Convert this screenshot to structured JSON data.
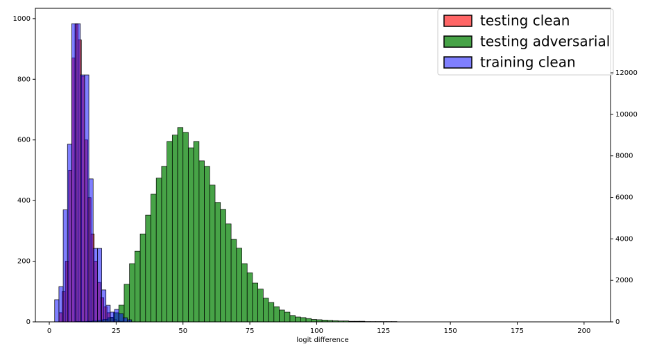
{
  "chart_data": {
    "type": "histogram",
    "xlabel": "logit difference",
    "xlim": [
      -5.2,
      209.9
    ],
    "xticks": [
      0,
      25,
      50,
      75,
      100,
      125,
      150,
      175,
      200
    ],
    "ylim": [
      0,
      1034
    ],
    "yticks": [
      0,
      200,
      400,
      600,
      800,
      1000
    ],
    "y2lim": [
      0,
      15110
    ],
    "y2ticks": [
      0,
      2000,
      4000,
      6000,
      8000,
      10000,
      12000
    ],
    "grid": false,
    "legend": "upper right",
    "series": [
      {
        "name": "testing clean",
        "color": "rgba(255,0,0,0.6)",
        "bins": [
          3.6,
          4.8,
          6.0,
          7.2,
          8.4,
          9.6,
          10.8,
          12.0,
          13.2,
          14.4,
          15.6,
          16.8,
          18.0,
          19.2,
          20.4,
          21.6,
          22.8,
          24.0,
          25.2,
          26.4,
          27.6
        ],
        "values": [
          30,
          100,
          200,
          500,
          870,
          982,
          930,
          810,
          600,
          410,
          290,
          200,
          130,
          80,
          50,
          30,
          15,
          8,
          4,
          2
        ]
      },
      {
        "name": "testing adversarial",
        "color": "rgba(0,128,0,0.72)",
        "bins": [
          10,
          12,
          14,
          16,
          18,
          20,
          22,
          24,
          26,
          28,
          30,
          32,
          34,
          36,
          38,
          40,
          42,
          44,
          46,
          48,
          50,
          52,
          54,
          56,
          58,
          60,
          62,
          64,
          66,
          68,
          70,
          72,
          74,
          76,
          78,
          80,
          82,
          84,
          86,
          88,
          90,
          92,
          94,
          96,
          98,
          100,
          102,
          104,
          106,
          108,
          110,
          112,
          114,
          116,
          118,
          120,
          122,
          124,
          126,
          128,
          130
        ],
        "values": [
          1,
          1,
          2,
          3,
          5,
          8,
          14,
          30,
          55,
          124,
          192,
          233,
          290,
          352,
          421,
          474,
          513,
          595,
          616,
          641,
          625,
          574,
          595,
          531,
          513,
          451,
          394,
          371,
          323,
          272,
          243,
          192,
          162,
          128,
          108,
          78,
          64,
          50,
          39,
          32,
          21,
          16,
          14,
          11,
          8,
          7,
          6,
          5,
          4,
          3,
          3,
          2,
          2,
          2,
          1,
          1,
          1,
          1,
          1,
          1
        ]
      },
      {
        "name": "training clean",
        "color": "rgba(0,0,255,0.5)",
        "axis": "y2",
        "bins": [
          2.0,
          3.6,
          5.2,
          6.8,
          8.4,
          10.0,
          11.6,
          13.2,
          14.8,
          16.4,
          18.0,
          19.6,
          21.2,
          22.8,
          24.4,
          26.0,
          27.6,
          29.2,
          30.8
        ],
        "values": [
          1070,
          1700,
          5400,
          8560,
          14370,
          14370,
          11900,
          11900,
          6890,
          3540,
          3540,
          1540,
          800,
          470,
          600,
          400,
          200,
          100
        ]
      }
    ]
  }
}
